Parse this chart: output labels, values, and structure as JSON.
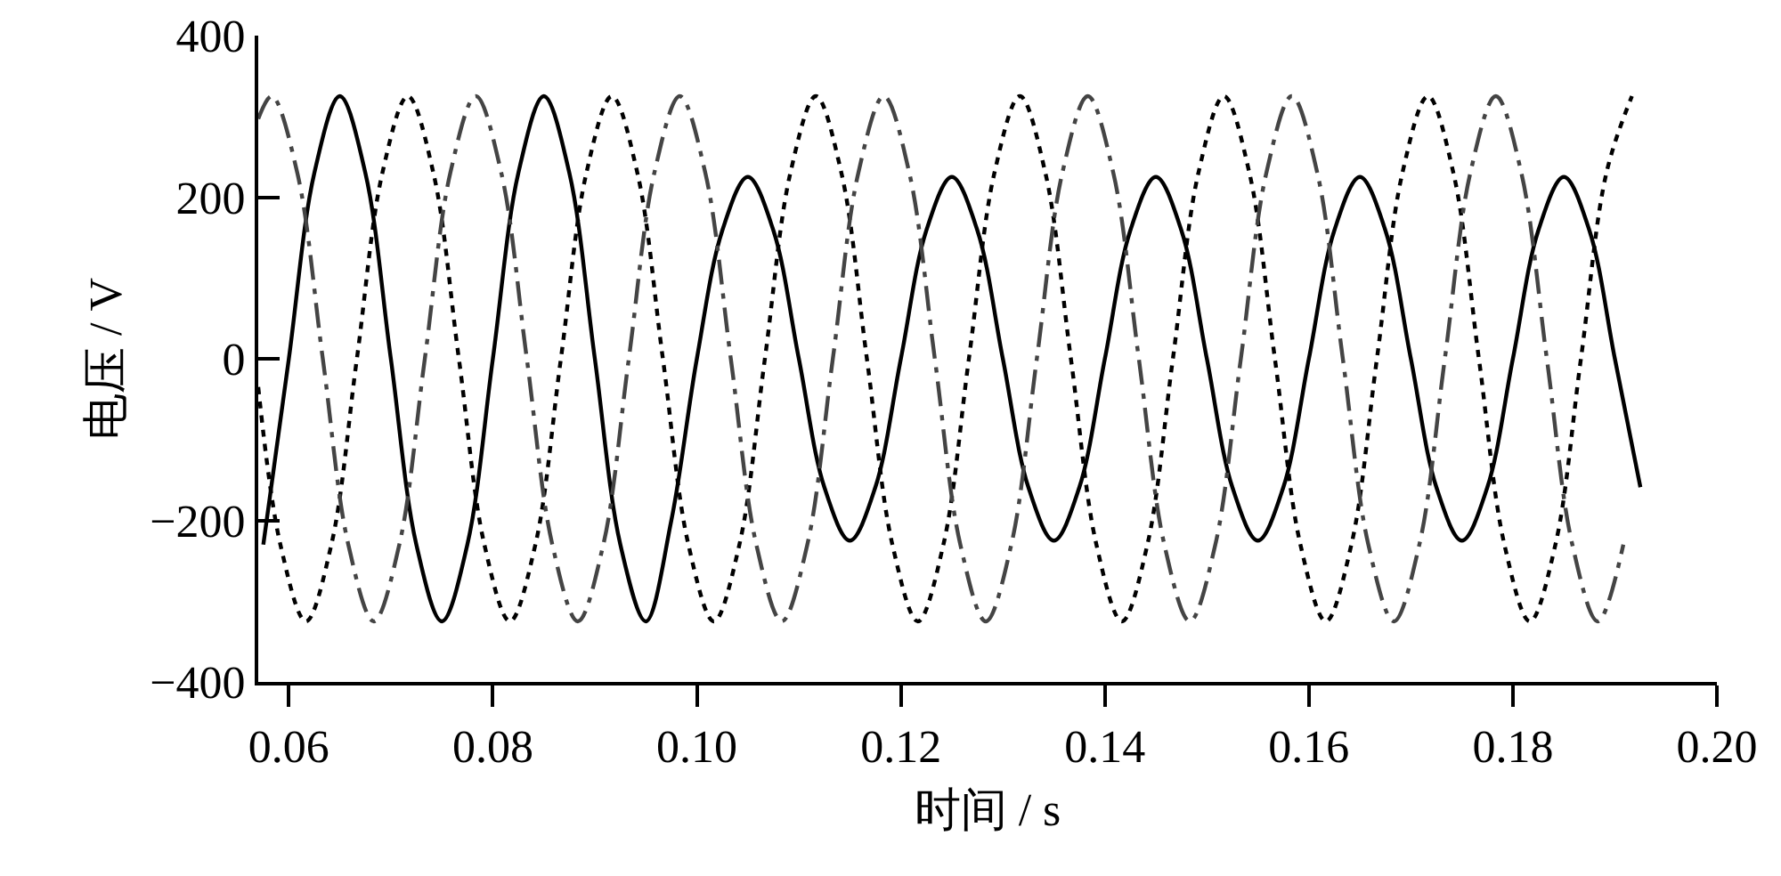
{
  "chart_data": {
    "type": "line",
    "xlabel": "时间 / s",
    "ylabel": "电压 / V",
    "xlim": [
      0.057,
      0.2
    ],
    "ylim": [
      -400,
      400
    ],
    "xticks": [
      0.06,
      0.08,
      {
        "value": 0.1,
        "label": "0.10"
      },
      0.12,
      0.14,
      0.16,
      0.18,
      {
        "value": 0.2,
        "label": "0.20"
      }
    ],
    "yticks": [
      {
        "value": -400,
        "label": "−400"
      },
      {
        "value": -200,
        "label": "−200"
      },
      0,
      200,
      400
    ],
    "grid": false,
    "marker": "none",
    "series": [
      {
        "color": "#000000",
        "line_style": "solid",
        "x": [
          0.0575,
          0.06,
          0.0625,
          0.065,
          0.0675,
          0.07,
          0.0725,
          0.075,
          0.0775,
          0.08,
          0.0825,
          0.085,
          0.0875,
          0.09,
          0.0925,
          0.095,
          0.0975,
          0.1,
          0.1025,
          0.105,
          0.1075,
          0.11,
          0.1125,
          0.115,
          0.1175,
          0.12,
          0.1225,
          0.125,
          0.1275,
          0.13,
          0.1325,
          0.135,
          0.1375,
          0.14,
          0.1425,
          0.145,
          0.1475,
          0.15,
          0.1525,
          0.155,
          0.1575,
          0.16,
          0.1625,
          0.165,
          0.1675,
          0.17,
          0.1725,
          0.175,
          0.1775,
          0.18,
          0.1825,
          0.185,
          0.1875,
          0.19,
          0.1925
        ],
        "values": [
          -230,
          0,
          230,
          325,
          230,
          0,
          -230,
          -325,
          -230,
          0,
          230,
          325,
          230,
          0,
          -230,
          -325,
          -200,
          0,
          159,
          225,
          159,
          0,
          -159,
          -225,
          -159,
          0,
          159,
          225,
          159,
          0,
          -159,
          -225,
          -159,
          0,
          159,
          225,
          159,
          0,
          -159,
          -225,
          -159,
          0,
          159,
          225,
          159,
          0,
          -159,
          -225,
          -159,
          0,
          159,
          225,
          159,
          0,
          -159
        ]
      },
      {
        "color": "#000000",
        "line_style": "dashed",
        "x": [
          0.057,
          0.05917,
          0.06167,
          0.06417,
          0.06667,
          0.06917,
          0.07167,
          0.07417,
          0.07667,
          0.07917,
          0.08167,
          0.08417,
          0.08667,
          0.08917,
          0.09167,
          0.09417,
          0.09667,
          0.09917,
          0.10167,
          0.10417,
          0.10667,
          0.10917,
          0.11167,
          0.11417,
          0.11667,
          0.11917,
          0.12167,
          0.12417,
          0.12667,
          0.12917,
          0.13167,
          0.13417,
          0.13667,
          0.13917,
          0.14167,
          0.14417,
          0.14667,
          0.14917,
          0.15167,
          0.15417,
          0.15667,
          0.15917,
          0.16167,
          0.16417,
          0.16667,
          0.16917,
          0.17167,
          0.17417,
          0.17667,
          0.17917,
          0.18167,
          0.18417,
          0.18667,
          0.18917,
          0.19167
        ],
        "values": [
          -35,
          -230,
          -325,
          -230,
          0,
          230,
          325,
          230,
          0,
          -230,
          -325,
          -230,
          0,
          230,
          325,
          230,
          0,
          -230,
          -325,
          -230,
          0,
          230,
          325,
          230,
          0,
          -230,
          -325,
          -230,
          0,
          230,
          325,
          230,
          0,
          -230,
          -325,
          -230,
          0,
          230,
          325,
          230,
          0,
          -230,
          -325,
          -230,
          0,
          230,
          325,
          230,
          0,
          -230,
          -325,
          -230,
          0,
          230,
          325
        ]
      },
      {
        "color": "#444444",
        "line_style": "dashdot",
        "x": [
          0.057,
          0.05833,
          0.06083,
          0.06333,
          0.06583,
          0.06833,
          0.07083,
          0.07333,
          0.07583,
          0.07833,
          0.08083,
          0.08333,
          0.08583,
          0.08833,
          0.09083,
          0.09333,
          0.09583,
          0.09833,
          0.10083,
          0.10333,
          0.10583,
          0.10833,
          0.11083,
          0.11333,
          0.11583,
          0.11833,
          0.12083,
          0.12333,
          0.12583,
          0.12833,
          0.13083,
          0.13333,
          0.13583,
          0.13833,
          0.14083,
          0.14333,
          0.14583,
          0.14833,
          0.15083,
          0.15333,
          0.15583,
          0.15833,
          0.16083,
          0.16333,
          0.16583,
          0.16833,
          0.17083,
          0.17333,
          0.17583,
          0.17833,
          0.18083,
          0.18333,
          0.18583,
          0.18833,
          0.19083
        ],
        "values": [
          297,
          325,
          230,
          0,
          -230,
          -325,
          -230,
          0,
          230,
          325,
          230,
          0,
          -230,
          -325,
          -230,
          0,
          230,
          325,
          230,
          0,
          -230,
          -325,
          -230,
          0,
          230,
          325,
          230,
          0,
          -230,
          -325,
          -230,
          0,
          230,
          325,
          230,
          0,
          -230,
          -325,
          -230,
          0,
          230,
          325,
          230,
          0,
          -230,
          -325,
          -230,
          0,
          230,
          325,
          230,
          0,
          -230,
          -325,
          -230
        ]
      }
    ]
  }
}
